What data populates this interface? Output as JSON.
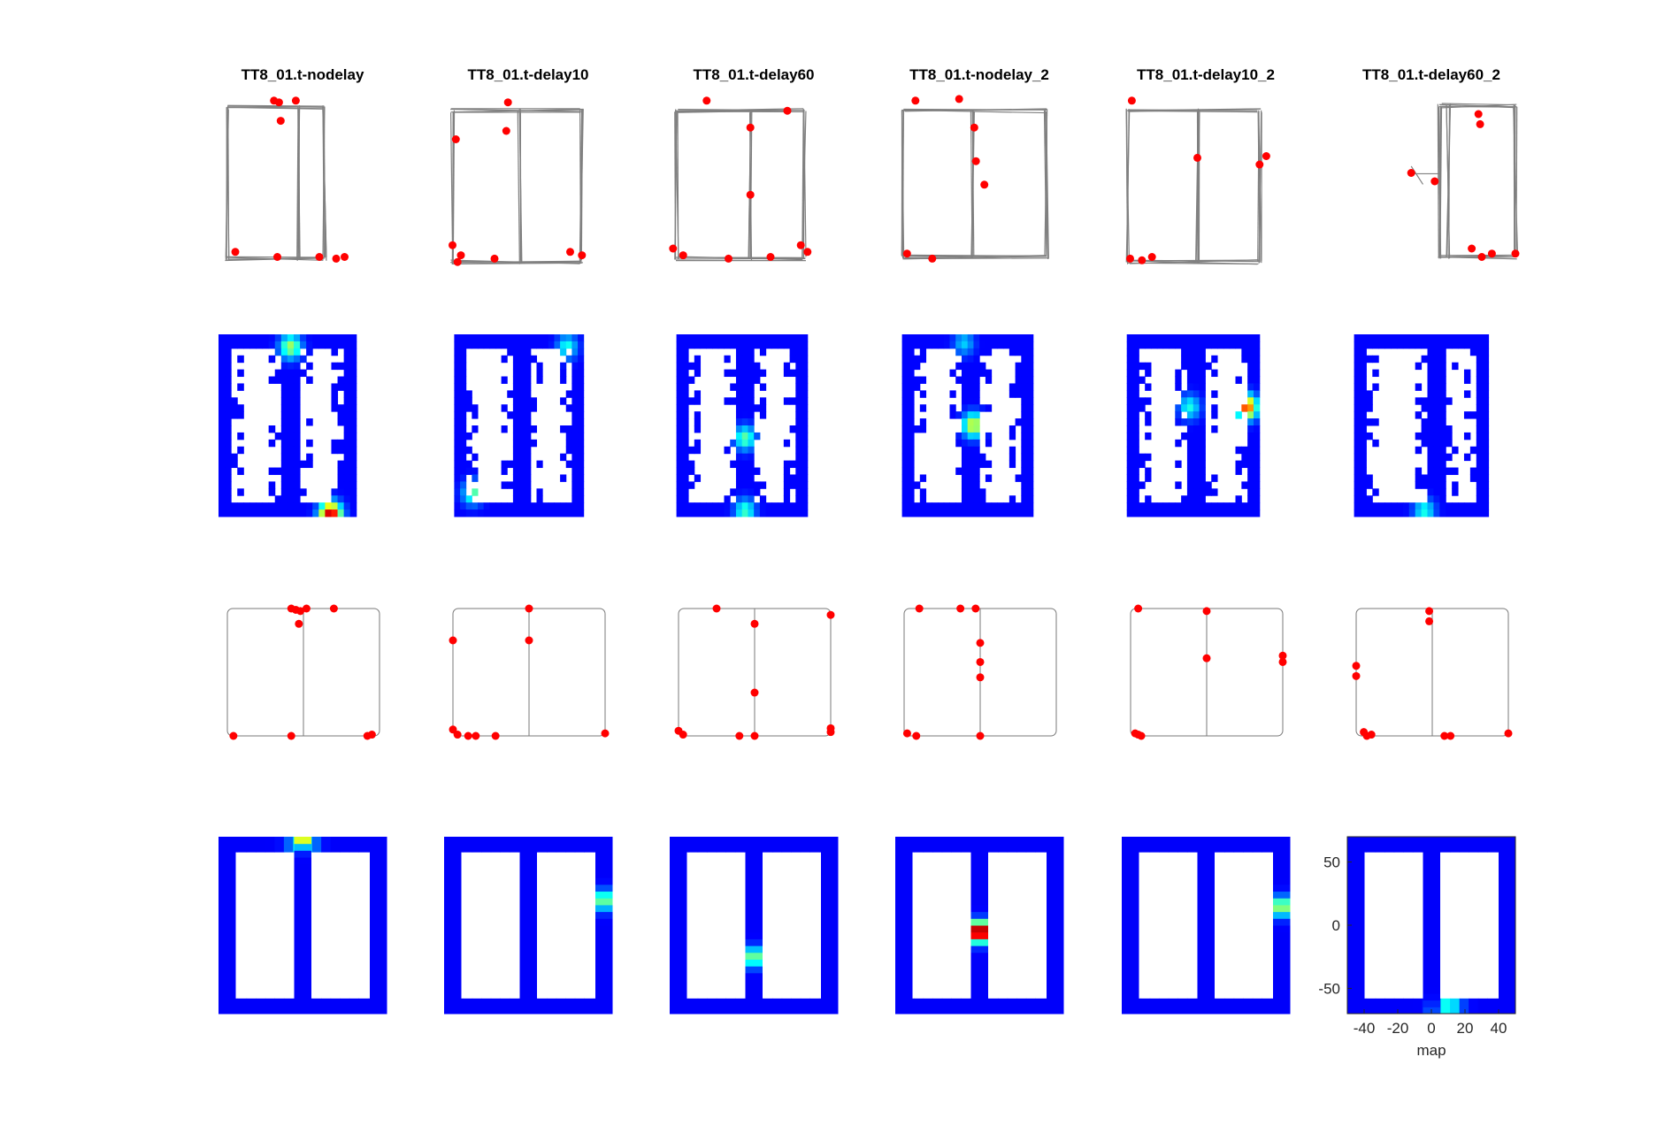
{
  "chart_data": {
    "type": "heatmap",
    "title": "",
    "columns": [
      "TT8_01.t-nodelay",
      "TT8_01.t-delay10",
      "TT8_01.t-delay60",
      "TT8_01.t-nodelay_2",
      "TT8_01.t-delay10_2",
      "TT8_01.t-delay60_2"
    ],
    "rows": [
      "raw trajectory with spikes",
      "raw rate map",
      "linearized track with spikes",
      "linearized rate map"
    ],
    "map_axes": {
      "xlabel": "map",
      "xlim": [
        -50,
        50
      ],
      "ylim": [
        -70,
        70
      ],
      "xticks": [
        -40,
        -20,
        0,
        20,
        40
      ],
      "yticks": [
        50,
        0,
        -50
      ]
    },
    "colormap": "jet",
    "colors": {
      "path": "#808080",
      "spike": "#ff0000",
      "low_rate": "#0000ff",
      "background": "#ffffff"
    },
    "rate_map_peaks": [
      {
        "column": "TT8_01.t-nodelay",
        "x": 0,
        "y": 70,
        "level": 0.6
      },
      {
        "column": "TT8_01.t-delay10",
        "x": 45,
        "y": 20,
        "level": 0.4
      },
      {
        "column": "TT8_01.t-delay60",
        "x": 0,
        "y": -25,
        "level": 0.4
      },
      {
        "column": "TT8_01.t-nodelay_2",
        "x": 0,
        "y": -5,
        "level": 1.0
      },
      {
        "column": "TT8_01.t-delay10_2",
        "x": 45,
        "y": 15,
        "level": 0.45
      },
      {
        "column": "TT8_01.t-delay60_2",
        "x": 10,
        "y": -68,
        "level": 0.4
      }
    ]
  }
}
